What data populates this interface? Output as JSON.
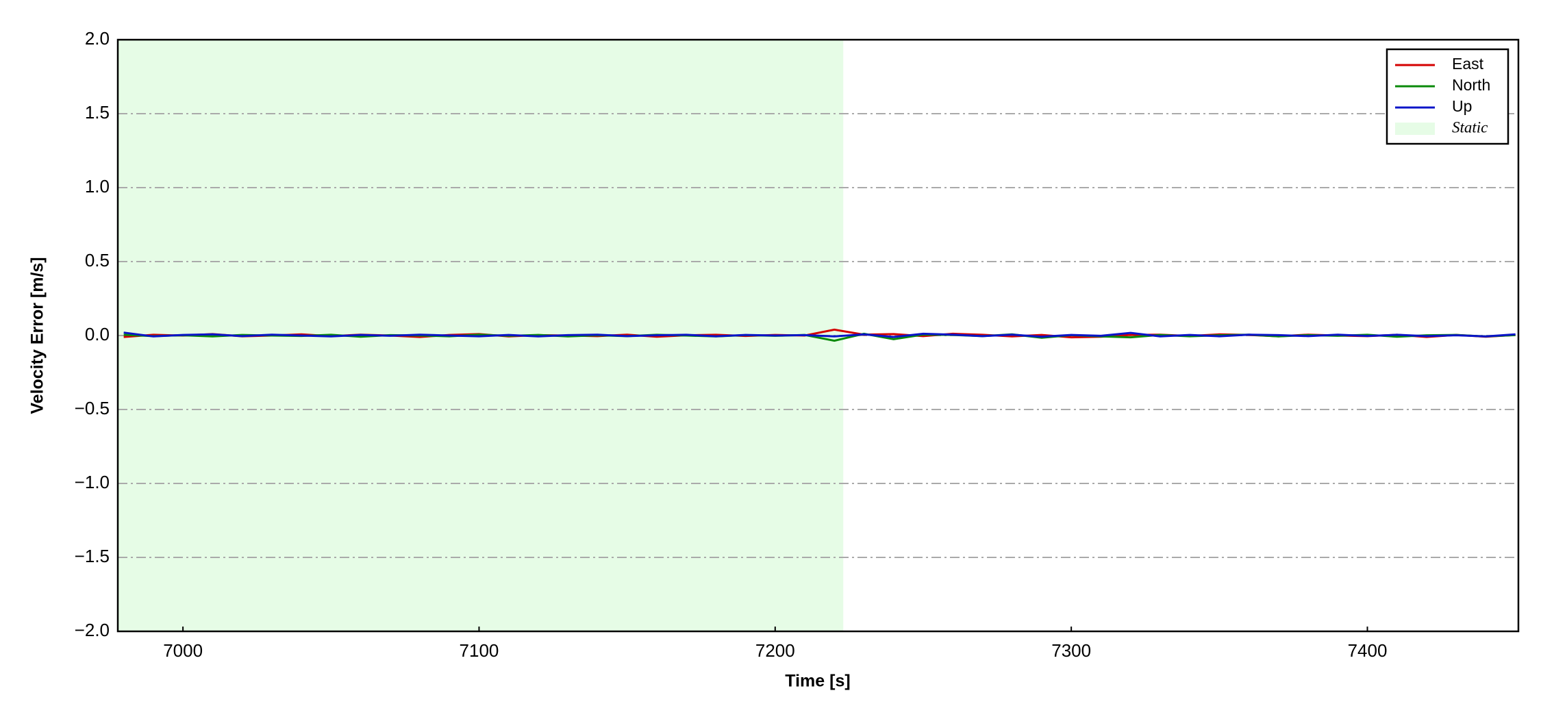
{
  "chart_data": {
    "type": "line",
    "xlabel": "Time [s]",
    "ylabel": "Velocity Error [m/s]",
    "xlim": [
      6978,
      7451
    ],
    "xticks": [
      7000,
      7100,
      7200,
      7300,
      7400
    ],
    "ylim": [
      -2.0,
      2.0
    ],
    "yticks": [
      {
        "value": -2.0,
        "label": "−2.0"
      },
      {
        "value": -1.5,
        "label": "−1.5"
      },
      {
        "value": -1.0,
        "label": "−1.0"
      },
      {
        "value": -0.5,
        "label": "−0.5"
      },
      {
        "value": 0.0,
        "label": "0.0"
      },
      0.5,
      {
        "value": 1.0,
        "label": "1.0"
      },
      1.5,
      {
        "value": 2.0,
        "label": "2.0"
      }
    ],
    "grid": "y",
    "legend": "upper right",
    "shaded_regions": [
      {
        "label": "Static",
        "start": 6978,
        "end": 7223,
        "color": "#e6fce6"
      }
    ],
    "x": [
      6980,
      6990,
      7000,
      7010,
      7020,
      7030,
      7040,
      7050,
      7060,
      7070,
      7080,
      7090,
      7100,
      7110,
      7120,
      7130,
      7140,
      7150,
      7160,
      7170,
      7180,
      7190,
      7200,
      7210,
      7220,
      7230,
      7240,
      7250,
      7260,
      7270,
      7280,
      7290,
      7300,
      7310,
      7320,
      7330,
      7340,
      7350,
      7360,
      7370,
      7380,
      7390,
      7400,
      7410,
      7420,
      7430,
      7440,
      7450
    ],
    "series": [
      {
        "name": "East",
        "color": "#d40000",
        "values": [
          -0.01,
          0.005,
          0,
          0.01,
          -0.005,
          0,
          0.008,
          -0.004,
          0.006,
          0,
          -0.01,
          0.004,
          0.01,
          -0.006,
          0.003,
          0,
          -0.004,
          0.006,
          -0.008,
          0.002,
          0.005,
          -0.003,
          0.004,
          0,
          0.04,
          0.006,
          0.01,
          -0.004,
          0.012,
          0.005,
          -0.006,
          0.004,
          -0.012,
          -0.008,
          0.004,
          0.006,
          -0.003,
          0.008,
          0.004,
          -0.005,
          0.006,
          0,
          -0.004,
          0.005,
          -0.01,
          0.004,
          -0.008,
          0.004
        ]
      },
      {
        "name": "North",
        "color": "#0a8a0a",
        "values": [
          0.005,
          -0.004,
          0.002,
          -0.006,
          0.004,
          0,
          -0.003,
          0.005,
          -0.008,
          0.003,
          0,
          -0.005,
          0.006,
          -0.002,
          0.004,
          -0.006,
          0.002,
          -0.004,
          0.005,
          0,
          -0.006,
          0.003,
          -0.002,
          0.004,
          -0.035,
          0.012,
          -0.025,
          0.006,
          0.004,
          -0.004,
          0.008,
          -0.015,
          0.003,
          -0.006,
          -0.012,
          0.004,
          -0.005,
          0.002,
          0.006,
          -0.006,
          0.003,
          -0.002,
          0.005,
          -0.008,
          0.002,
          0.004,
          -0.006,
          0.003
        ]
      },
      {
        "name": "Up",
        "color": "#0a14c8",
        "values": [
          0.02,
          -0.006,
          0.004,
          0.008,
          -0.004,
          0.006,
          0,
          -0.006,
          0.004,
          -0.002,
          0.006,
          0,
          -0.005,
          0.004,
          -0.006,
          0.003,
          0.006,
          -0.004,
          0.002,
          0.005,
          -0.005,
          0.004,
          0,
          0.003,
          -0.006,
          0.008,
          -0.01,
          0.012,
          0.006,
          -0.004,
          0.006,
          -0.008,
          0.004,
          -0.002,
          0.018,
          -0.006,
          0.004,
          -0.005,
          0.006,
          0.003,
          -0.004,
          0.006,
          -0.003,
          0.005,
          -0.004,
          0.002,
          -0.006,
          0.008
        ]
      }
    ]
  }
}
